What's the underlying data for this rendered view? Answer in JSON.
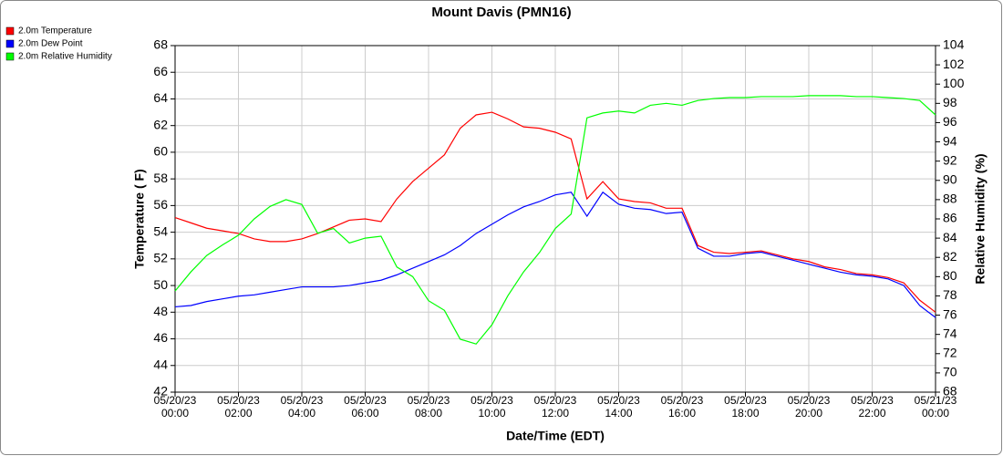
{
  "chart_data": {
    "type": "line",
    "title": "Mount Davis (PMN16)",
    "x_label": "Date/Time (EDT)",
    "y_label": "Temperature ( F)",
    "y2_label": "Relative Humidity (%)",
    "x": [
      "05/20/23 00:00",
      "05/20/23 00:30",
      "05/20/23 01:00",
      "05/20/23 01:30",
      "05/20/23 02:00",
      "05/20/23 02:30",
      "05/20/23 03:00",
      "05/20/23 03:30",
      "05/20/23 04:00",
      "05/20/23 04:30",
      "05/20/23 05:00",
      "05/20/23 05:30",
      "05/20/23 06:00",
      "05/20/23 06:30",
      "05/20/23 07:00",
      "05/20/23 07:30",
      "05/20/23 08:00",
      "05/20/23 08:30",
      "05/20/23 09:00",
      "05/20/23 09:30",
      "05/20/23 10:00",
      "05/20/23 10:30",
      "05/20/23 11:00",
      "05/20/23 11:30",
      "05/20/23 12:00",
      "05/20/23 12:30",
      "05/20/23 13:00",
      "05/20/23 13:30",
      "05/20/23 14:00",
      "05/20/23 14:30",
      "05/20/23 15:00",
      "05/20/23 15:30",
      "05/20/23 16:00",
      "05/20/23 16:30",
      "05/20/23 17:00",
      "05/20/23 17:30",
      "05/20/23 18:00",
      "05/20/23 18:30",
      "05/20/23 19:00",
      "05/20/23 19:30",
      "05/20/23 20:00",
      "05/20/23 20:30",
      "05/20/23 21:00",
      "05/20/23 21:30",
      "05/20/23 22:00",
      "05/20/23 22:30",
      "05/20/23 23:00",
      "05/20/23 23:30",
      "05/21/23 00:00"
    ],
    "series": [
      {
        "name": "2.0m Temperature",
        "color": "#ff0000",
        "values": [
          55.1,
          54.7,
          54.3,
          54.1,
          53.9,
          53.5,
          53.3,
          53.3,
          53.5,
          53.9,
          54.4,
          54.9,
          55.0,
          54.8,
          56.5,
          57.8,
          58.8,
          59.8,
          61.8,
          62.8,
          63.0,
          62.5,
          61.9,
          61.8,
          61.5,
          61.0,
          56.5,
          57.8,
          56.5,
          56.3,
          56.2,
          55.8,
          55.8,
          53.0,
          52.5,
          52.4,
          52.5,
          52.6,
          52.3,
          52.0,
          51.8,
          51.4,
          51.2,
          50.9,
          50.8,
          50.6,
          50.2,
          48.9,
          48.0
        ]
      },
      {
        "name": "2.0m Dew Point",
        "color": "#0000ff",
        "values": [
          48.4,
          48.5,
          48.8,
          49.0,
          49.2,
          49.3,
          49.5,
          49.7,
          49.9,
          49.9,
          49.9,
          50.0,
          50.2,
          50.4,
          50.8,
          51.3,
          51.8,
          52.3,
          53.0,
          53.9,
          54.6,
          55.3,
          55.9,
          56.3,
          56.8,
          57.0,
          55.2,
          57.0,
          56.1,
          55.8,
          55.7,
          55.4,
          55.5,
          52.8,
          52.2,
          52.2,
          52.4,
          52.5,
          52.2,
          51.9,
          51.6,
          51.3,
          51.0,
          50.8,
          50.7,
          50.5,
          50.0,
          48.5,
          47.6
        ]
      },
      {
        "name": "2.0m Relative Humidity",
        "color": "#00ff00",
        "axis": "y2",
        "values": [
          78.5,
          80.5,
          82.2,
          83.3,
          84.3,
          86.0,
          87.3,
          88.0,
          87.5,
          84.5,
          85.0,
          83.5,
          84.0,
          84.2,
          81.0,
          80.0,
          77.5,
          76.5,
          73.5,
          73.0,
          75.0,
          78.0,
          80.5,
          82.5,
          85.0,
          86.5,
          96.5,
          97.0,
          97.2,
          97.0,
          97.8,
          98.0,
          97.8,
          98.3,
          98.5,
          98.6,
          98.6,
          98.7,
          98.7,
          98.7,
          98.8,
          98.8,
          98.8,
          98.7,
          98.7,
          98.6,
          98.5,
          98.3,
          96.8
        ]
      }
    ],
    "xlim": [
      "05/20/23 00:00",
      "05/21/23 00:00"
    ],
    "xticks": [
      "05/20/23 00:00",
      "05/20/23 02:00",
      "05/20/23 04:00",
      "05/20/23 06:00",
      "05/20/23 08:00",
      "05/20/23 10:00",
      "05/20/23 12:00",
      "05/20/23 14:00",
      "05/20/23 16:00",
      "05/20/23 18:00",
      "05/20/23 20:00",
      "05/20/23 22:00",
      "05/21/23 00:00"
    ],
    "ylim": [
      42,
      68
    ],
    "yticks": [
      42,
      44,
      46,
      48,
      50,
      52,
      54,
      56,
      58,
      60,
      62,
      64,
      66,
      68
    ],
    "y2lim": [
      68,
      104
    ],
    "y2ticks": [
      68,
      70,
      72,
      74,
      76,
      78,
      80,
      82,
      84,
      86,
      88,
      90,
      92,
      94,
      96,
      98,
      100,
      102,
      104
    ],
    "grid": true,
    "legend": "top-left"
  }
}
